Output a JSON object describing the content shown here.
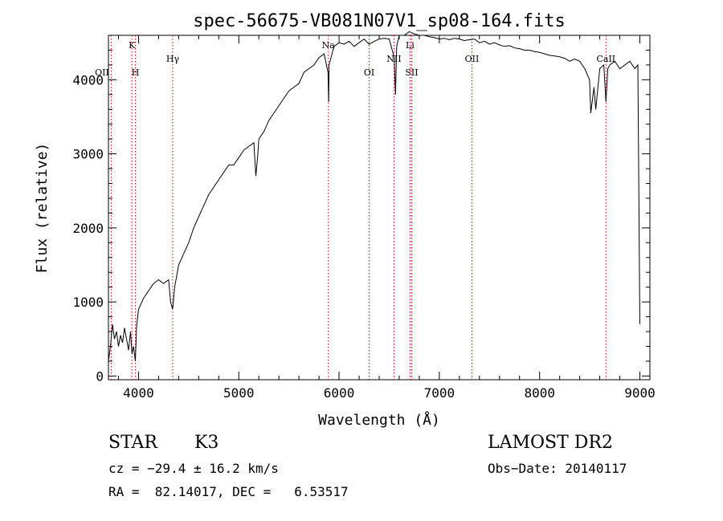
{
  "chart_data": {
    "type": "line",
    "title": "spec-56675-VB081N07V1_sp08-164.fits",
    "xlabel": "Wavelength (Å)",
    "ylabel": "Flux (relative)",
    "xlim": [
      3700,
      9100
    ],
    "ylim": [
      -50,
      4600
    ],
    "x_ticks": [
      4000,
      5000,
      6000,
      7000,
      8000,
      9000
    ],
    "x_tick_labels": [
      "4000",
      "5000",
      "6000",
      "7000",
      "8000",
      "9000"
    ],
    "y_ticks": [
      0,
      1000,
      2000,
      3000,
      4000
    ],
    "y_tick_labels": [
      "0",
      "1000",
      "2000",
      "3000",
      "4000"
    ],
    "series": [
      {
        "name": "spectrum",
        "x": [
          3700,
          3720,
          3740,
          3760,
          3780,
          3800,
          3820,
          3840,
          3860,
          3880,
          3900,
          3920,
          3935,
          3950,
          3968,
          3980,
          4000,
          4050,
          4100,
          4150,
          4200,
          4250,
          4300,
          4320,
          4340,
          4360,
          4380,
          4400,
          4450,
          4500,
          4550,
          4600,
          4650,
          4700,
          4750,
          4800,
          4850,
          4900,
          4950,
          5000,
          5050,
          5100,
          5150,
          5170,
          5190,
          5200,
          5250,
          5300,
          5350,
          5400,
          5450,
          5500,
          5550,
          5600,
          5650,
          5700,
          5750,
          5800,
          5850,
          5890,
          5896,
          5900,
          5950,
          6000,
          6050,
          6100,
          6150,
          6200,
          6250,
          6300,
          6350,
          6400,
          6450,
          6500,
          6550,
          6563,
          6575,
          6600,
          6650,
          6700,
          6750,
          6800,
          6850,
          6900,
          6950,
          7000,
          7050,
          7100,
          7150,
          7200,
          7250,
          7300,
          7350,
          7400,
          7450,
          7500,
          7550,
          7600,
          7650,
          7700,
          7750,
          7800,
          7850,
          7900,
          7950,
          8000,
          8050,
          8100,
          8150,
          8200,
          8250,
          8300,
          8350,
          8400,
          8450,
          8498,
          8510,
          8542,
          8560,
          8600,
          8640,
          8662,
          8680,
          8700,
          8750,
          8800,
          8850,
          8900,
          8950,
          8980,
          9000
        ],
        "values": [
          200,
          400,
          700,
          500,
          600,
          400,
          550,
          450,
          650,
          500,
          350,
          600,
          300,
          400,
          200,
          650,
          900,
          1050,
          1150,
          1250,
          1300,
          1250,
          1300,
          1000,
          900,
          1200,
          1350,
          1500,
          1650,
          1800,
          2000,
          2150,
          2300,
          2450,
          2550,
          2650,
          2750,
          2850,
          2850,
          2950,
          3050,
          3100,
          3150,
          2700,
          3000,
          3200,
          3300,
          3450,
          3550,
          3650,
          3750,
          3850,
          3900,
          3950,
          4100,
          4150,
          4200,
          4300,
          4350,
          4100,
          3700,
          4200,
          4450,
          4500,
          4480,
          4520,
          4450,
          4500,
          4550,
          4480,
          4520,
          4550,
          4560,
          4550,
          4300,
          3800,
          4450,
          4600,
          4600,
          4650,
          4620,
          4600,
          4600,
          4580,
          4570,
          4550,
          4560,
          4540,
          4560,
          4550,
          4530,
          4540,
          4550,
          4500,
          4520,
          4480,
          4500,
          4470,
          4450,
          4460,
          4430,
          4420,
          4400,
          4400,
          4380,
          4370,
          4350,
          4330,
          4320,
          4310,
          4290,
          4250,
          4280,
          4250,
          4150,
          4000,
          3550,
          3900,
          3600,
          4150,
          4200,
          3700,
          4150,
          4200,
          4250,
          4150,
          4200,
          4250,
          4150,
          4200,
          700
        ]
      }
    ],
    "lines": [
      {
        "label": "OII",
        "x": 3727
      },
      {
        "label": "K",
        "x": 3934
      },
      {
        "label": "H",
        "x": 3969
      },
      {
        "label": "Hγ",
        "x": 4341
      },
      {
        "label": "Na",
        "x": 5893
      },
      {
        "label": "OI",
        "x": 6300
      },
      {
        "label": "NII",
        "x": 6548
      },
      {
        "label": "Li",
        "x": 6708
      },
      {
        "label": "SII",
        "x": 6724
      },
      {
        "label": "OII",
        "x": 7325
      },
      {
        "label": "CaII",
        "x": 8662
      }
    ]
  },
  "info": {
    "object_class": "STAR",
    "subclass": "K3",
    "release": "LAMOST DR2",
    "cz_text": "cz = −29.4 ± 16.2 km/s",
    "obs_date": "Obs−Date: 20140117",
    "radec_text": "RA =  82.14017, DEC =   6.53517"
  },
  "colors": {
    "line_marker": "#cc0000",
    "spectrum": "#000000",
    "axes": "#000000"
  }
}
